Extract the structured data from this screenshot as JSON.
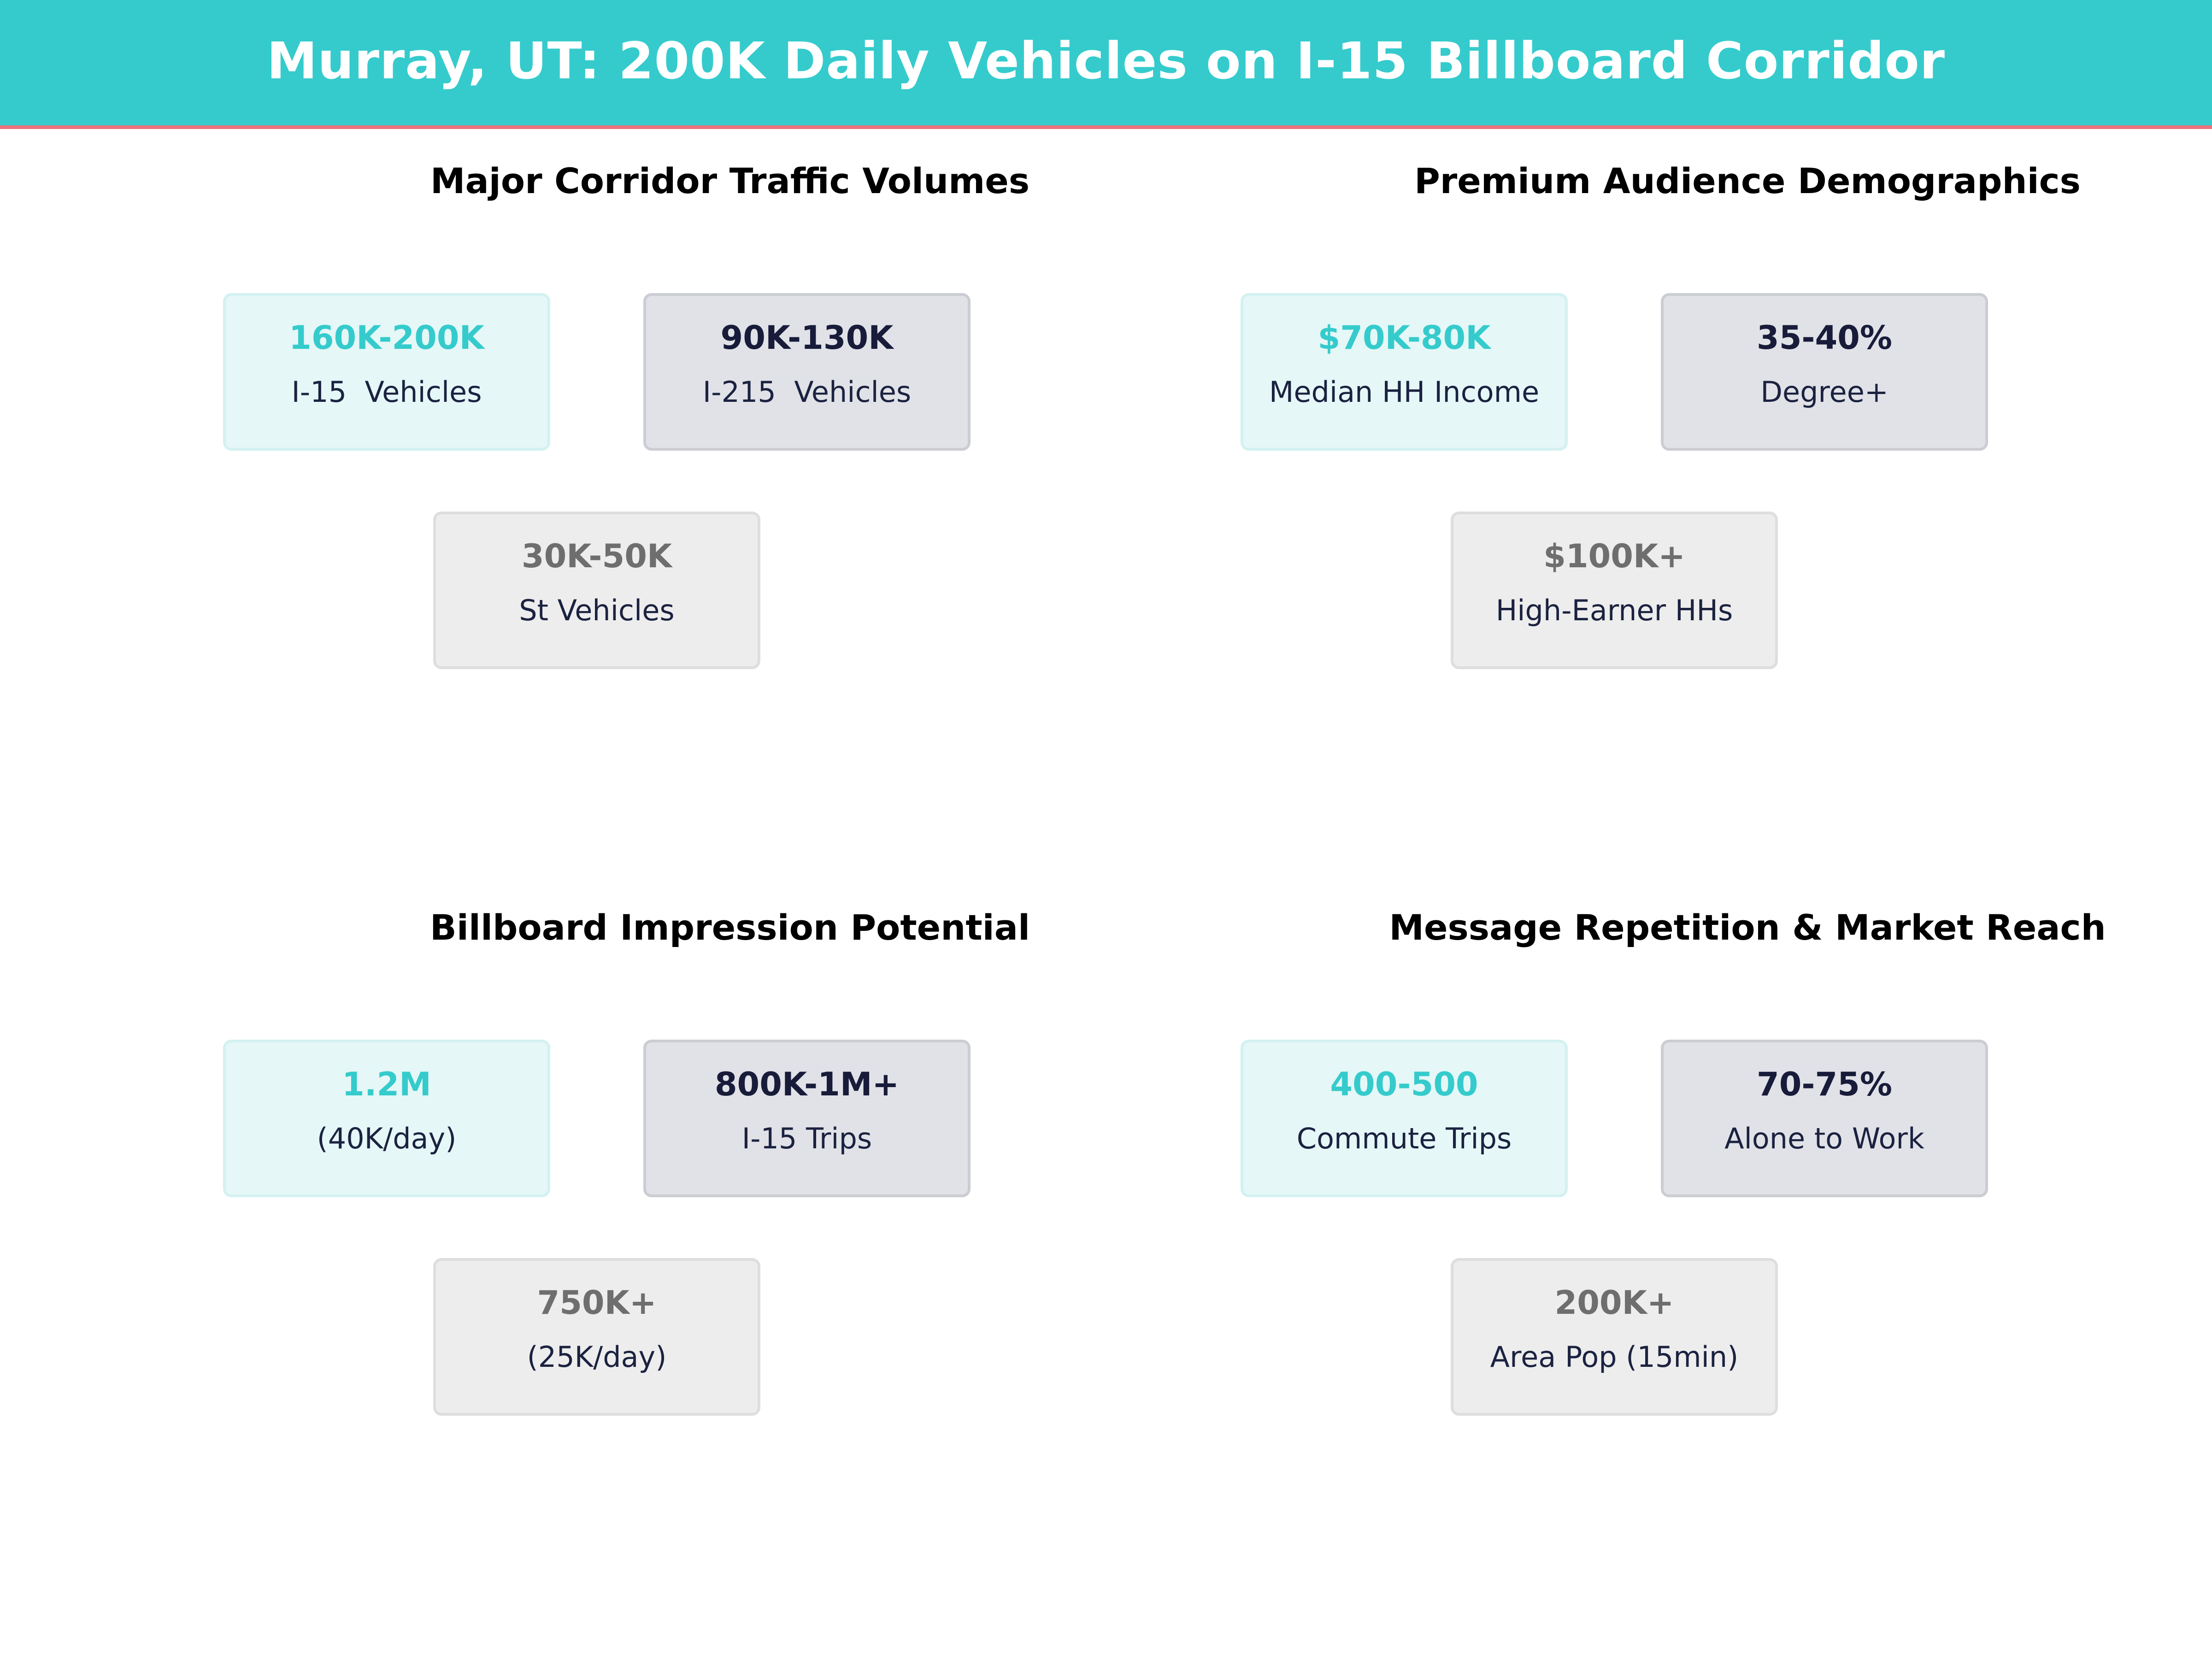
{
  "header": {
    "title": "Murray, UT: 200K Daily Vehicles on I-15 Billboard Corridor"
  },
  "colors": {
    "accent": "#35cbcc",
    "accent_line": "#e8737a",
    "navy": "#181c3a",
    "gray": "#6e6e6e"
  },
  "panels": [
    {
      "title": "Major Corridor Traffic Volumes",
      "cards": [
        {
          "value": "160K-200K",
          "label": "I-15  Vehicles"
        },
        {
          "value": "90K-130K",
          "label": "I-215  Vehicles"
        },
        {
          "value": "30K-50K",
          "label": "St Vehicles"
        }
      ]
    },
    {
      "title": "Premium Audience Demographics",
      "cards": [
        {
          "value": "$70K-80K",
          "label": "Median HH Income"
        },
        {
          "value": "35-40%",
          "label": "Degree+"
        },
        {
          "value": "$100K+",
          "label": "High-Earner HHs"
        }
      ]
    },
    {
      "title": "Billboard Impression Potential",
      "cards": [
        {
          "value": "1.2M",
          "label": "(40K/day)"
        },
        {
          "value": "800K-1M+",
          "label": "I-15 Trips"
        },
        {
          "value": "750K+",
          "label": "(25K/day)"
        }
      ]
    },
    {
      "title": "Message Repetition & Market Reach",
      "cards": [
        {
          "value": "400-500",
          "label": "Commute Trips"
        },
        {
          "value": "70-75%",
          "label": "Alone to Work"
        },
        {
          "value": "200K+",
          "label": "Area Pop (15min)"
        }
      ]
    }
  ]
}
